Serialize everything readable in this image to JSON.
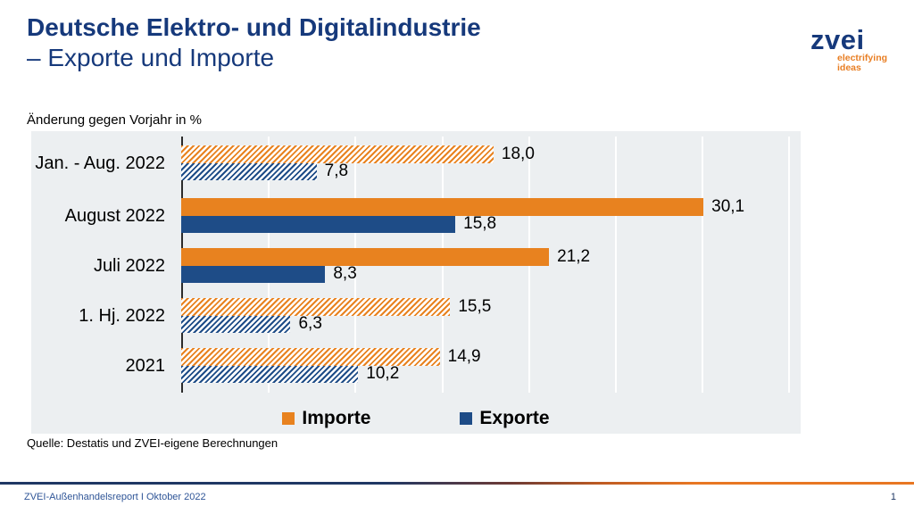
{
  "header": {
    "title_line1": "Deutsche Elektro- und Digitalindustrie",
    "title_line2": "– Exporte und Importe"
  },
  "logo": {
    "brand": "zvei",
    "tagline_line1": "electrifying",
    "tagline_line2": "ideas"
  },
  "chart_data": {
    "type": "bar",
    "orientation": "horizontal",
    "title": "Änderung gegen Vorjahr in %",
    "categories": [
      "Jan. - Aug. 2022",
      "August 2022",
      "Juli 2022",
      "1. Hj. 2022",
      "2021"
    ],
    "series": [
      {
        "name": "Importe",
        "color": "#E8821F",
        "values": [
          18.0,
          30.1,
          21.2,
          15.5,
          14.9
        ],
        "display_labels": [
          "18,0",
          "30,1",
          "21,2",
          "15,5",
          "14,9"
        ]
      },
      {
        "name": "Exporte",
        "color": "#1E4C87",
        "values": [
          7.8,
          15.8,
          8.3,
          6.3,
          10.2
        ],
        "display_labels": [
          "7,8",
          "15,8",
          "8,3",
          "6,3",
          "10,2"
        ]
      }
    ],
    "hatched_categories": [
      true,
      false,
      false,
      true,
      true
    ],
    "xlim": [
      0,
      35
    ],
    "grid_step": 5,
    "grid": "vertical white gridlines every 5 units",
    "legend_position": "bottom center inside plot background",
    "plot_background": "#ECEFF1"
  },
  "source": "Quelle: Destatis und ZVEI-eigene Berechnungen",
  "footer": {
    "report_label": "ZVEI-Außenhandelsreport I Oktober 2022",
    "page_number": "1"
  },
  "colors": {
    "title_blue": "#16397B",
    "accent_orange": "#E8821F",
    "accent_blue": "#1E4C87",
    "footer_text_blue": "#2F5597",
    "chart_bg": "#ECEFF1"
  }
}
